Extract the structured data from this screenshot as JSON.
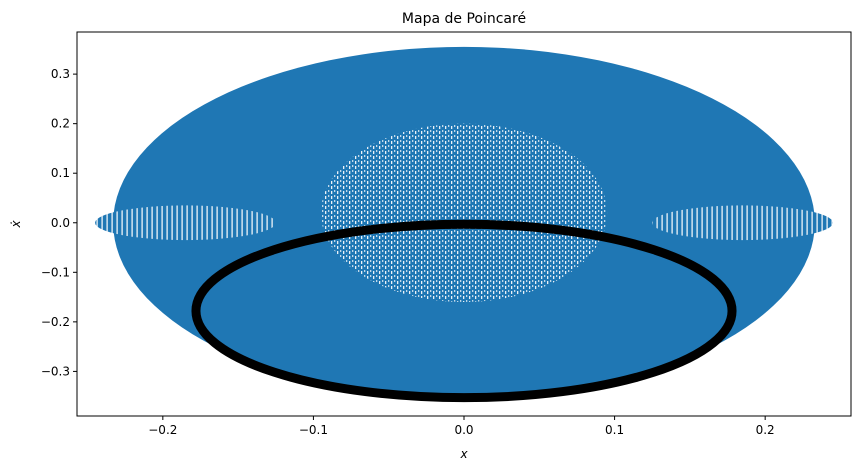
{
  "chart_data": {
    "type": "scatter",
    "title": "Mapa de Poincaré",
    "xlabel": "x",
    "ylabel": "ẋ",
    "xlim": [
      -0.257,
      0.257
    ],
    "ylim": [
      -0.39,
      0.385
    ],
    "xticks": [
      -0.2,
      -0.1,
      0.0,
      0.1,
      0.2
    ],
    "xtick_labels": [
      "−0.2",
      "−0.1",
      "0.0",
      "0.1",
      "0.2"
    ],
    "yticks": [
      -0.3,
      -0.2,
      -0.1,
      0.0,
      0.1,
      0.2,
      0.3
    ],
    "ytick_labels": [
      "−0.3",
      "−0.2",
      "−0.1",
      "0.0",
      "0.1",
      "0.2",
      "0.3"
    ],
    "grid": false,
    "series": [
      {
        "color": "#1f77b4",
        "shape": "filled-ellipse",
        "center": [
          0.0,
          0.0
        ],
        "x_semi_axis": 0.233,
        "y_semi_axis_top": 0.355,
        "y_semi_axis_bottom": 0.355
      },
      {
        "color": "#000000",
        "shape": "ellipse-ring",
        "center": [
          0.0,
          -0.178
        ],
        "x_semi_axis": 0.178,
        "y_semi_axis": 0.175
      }
    ],
    "fine_structure": {
      "color": "#ffffff",
      "regions": [
        {
          "name": "central-island",
          "center": [
            0.0,
            0.02
          ],
          "x_semi_axis": 0.095,
          "y_semi_axis": 0.18
        },
        {
          "name": "left-island",
          "center": [
            -0.185,
            0.0
          ],
          "x_semi_axis": 0.06,
          "y_semi_axis": 0.035
        },
        {
          "name": "right-island",
          "center": [
            0.185,
            0.0
          ],
          "x_semi_axis": 0.06,
          "y_semi_axis": 0.035
        }
      ]
    }
  }
}
